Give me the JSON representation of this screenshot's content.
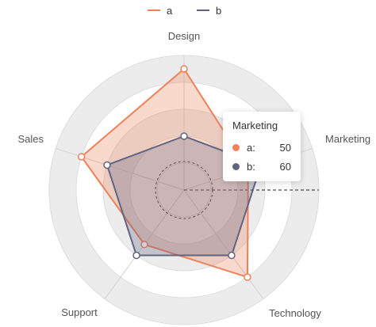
{
  "chart_data": {
    "type": "radar",
    "indicators": [
      "Design",
      "Marketing",
      "Technology",
      "Support",
      "Sales"
    ],
    "max": 100,
    "series": [
      {
        "name": "a",
        "values": [
          90,
          50,
          80,
          50,
          80
        ],
        "color": "#f0805a"
      },
      {
        "name": "b",
        "values": [
          40,
          60,
          60,
          60,
          60
        ],
        "color": "#606480"
      }
    ]
  },
  "tooltip": {
    "title": "Marketing",
    "rows": [
      {
        "name": "a:",
        "value": "50",
        "color": "#f0805a"
      },
      {
        "name": "b:",
        "value": "60",
        "color": "#606480"
      }
    ]
  }
}
